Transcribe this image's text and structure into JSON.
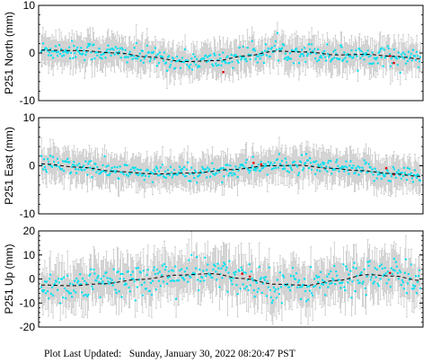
{
  "footer": {
    "prefix": "Plot Last Updated:",
    "timestamp": "Sunday, January 30, 2022 08:20:47 PST"
  },
  "colors": {
    "data_point": "#00e0f0",
    "outlier_point": "#e00000",
    "error_bar": "#c8c8c8",
    "model_line": "#000000",
    "frame": "#000000"
  },
  "chart_data": [
    {
      "type": "scatter",
      "ylabel": "P251 North (mm)",
      "ylim": [
        -10,
        10
      ],
      "yticks": [
        -10,
        0,
        10
      ],
      "n_points": 420,
      "error_bar_mm": 3.0,
      "scatter_mm": 1.0,
      "model_trend": [
        [
          0.0,
          0.6
        ],
        [
          0.1,
          0.5
        ],
        [
          0.2,
          0.0
        ],
        [
          0.28,
          -0.8
        ],
        [
          0.38,
          -1.8
        ],
        [
          0.46,
          -1.6
        ],
        [
          0.54,
          -0.6
        ],
        [
          0.62,
          0.4
        ],
        [
          0.7,
          0.2
        ],
        [
          0.78,
          -0.4
        ],
        [
          0.86,
          -0.3
        ],
        [
          0.93,
          -0.7
        ],
        [
          1.0,
          -1.2
        ]
      ],
      "outliers": [
        [
          0.48,
          -4.0
        ],
        [
          0.92,
          -0.6
        ],
        [
          0.93,
          -2.1
        ]
      ]
    },
    {
      "type": "scatter",
      "ylabel": "P251 East (mm)",
      "ylim": [
        -10,
        10
      ],
      "yticks": [
        -10,
        0,
        10
      ],
      "n_points": 420,
      "error_bar_mm": 3.0,
      "scatter_mm": 0.9,
      "model_trend": [
        [
          0.0,
          0.4
        ],
        [
          0.1,
          -0.3
        ],
        [
          0.2,
          -1.2
        ],
        [
          0.3,
          -1.7
        ],
        [
          0.4,
          -1.5
        ],
        [
          0.5,
          -0.8
        ],
        [
          0.6,
          0.0
        ],
        [
          0.68,
          0.1
        ],
        [
          0.76,
          -0.5
        ],
        [
          0.84,
          -1.0
        ],
        [
          0.92,
          -1.6
        ],
        [
          1.0,
          -2.2
        ]
      ],
      "outliers": [
        [
          0.56,
          0.6
        ],
        [
          0.58,
          0.3
        ],
        [
          0.91,
          -0.5
        ],
        [
          0.93,
          -1.8
        ]
      ]
    },
    {
      "type": "scatter",
      "ylabel": "P251 Up (mm)",
      "ylim": [
        -20,
        20
      ],
      "yticks": [
        -20,
        -10,
        0,
        10,
        20
      ],
      "n_points": 420,
      "error_bar_mm": 8.0,
      "scatter_mm": 3.5,
      "model_trend": [
        [
          0.0,
          -2.5
        ],
        [
          0.08,
          -2.8
        ],
        [
          0.16,
          -2.0
        ],
        [
          0.26,
          -0.2
        ],
        [
          0.36,
          1.6
        ],
        [
          0.45,
          2.2
        ],
        [
          0.53,
          0.2
        ],
        [
          0.62,
          -2.2
        ],
        [
          0.7,
          -2.6
        ],
        [
          0.78,
          -0.6
        ],
        [
          0.86,
          1.8
        ],
        [
          0.93,
          1.2
        ],
        [
          1.0,
          -0.6
        ]
      ],
      "outliers": [
        [
          0.53,
          2.2
        ],
        [
          0.55,
          1.0
        ],
        [
          0.92,
          2.5
        ]
      ]
    }
  ]
}
